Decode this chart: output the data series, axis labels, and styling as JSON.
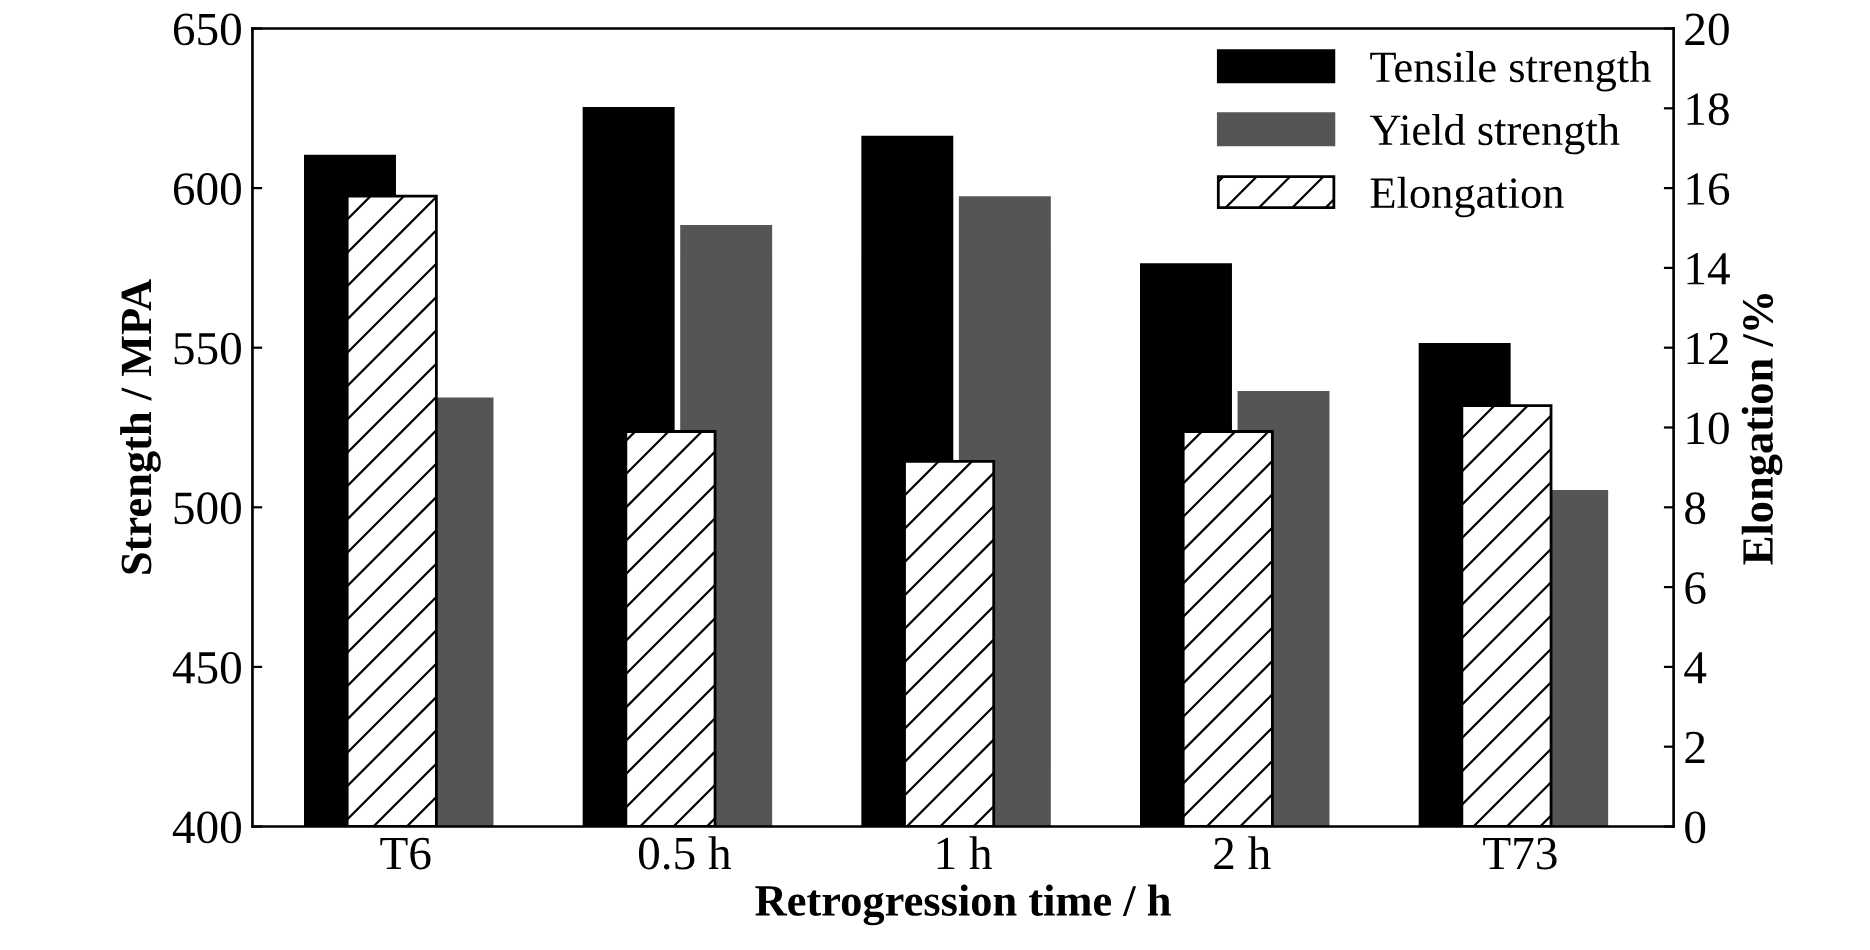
{
  "chart_data": {
    "type": "bar",
    "xlabel": "Retrogression time / h",
    "ylabel": "Strength / MPA",
    "y2label": "Elongation /%",
    "categories": [
      "T6",
      "0.5 h",
      "1 h",
      "2 h",
      "T73"
    ],
    "series": [
      {
        "name": "Tensile strength",
        "color": "#000000",
        "values": [
          610,
          625,
          616,
          576,
          551
        ]
      },
      {
        "name": "Yield strength",
        "color": "#555555",
        "values": [
          534,
          588,
          597,
          536,
          505
        ]
      },
      {
        "name": "Elongation",
        "color": "#000000",
        "axis": "y2",
        "values": [
          15.8,
          9.9,
          9.15,
          9.9,
          10.55
        ]
      }
    ],
    "ylim": [
      400,
      650
    ],
    "yticks": [
      400,
      450,
      500,
      550,
      600,
      650
    ],
    "y2lim": [
      0,
      20
    ],
    "y2ticks": [
      0,
      2,
      4,
      6,
      8,
      10,
      12,
      14,
      16,
      18,
      20
    ],
    "legend": "top right",
    "grid": false
  }
}
